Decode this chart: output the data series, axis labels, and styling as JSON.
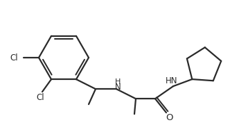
{
  "bg_color": "#ffffff",
  "line_color": "#2a2a2a",
  "line_width": 1.6,
  "font_size": 8.5,
  "Cl1": "Cl",
  "Cl2": "Cl",
  "NH_mid": "H",
  "N_mid": "N",
  "HN_amide": "HN",
  "O_label": "O"
}
